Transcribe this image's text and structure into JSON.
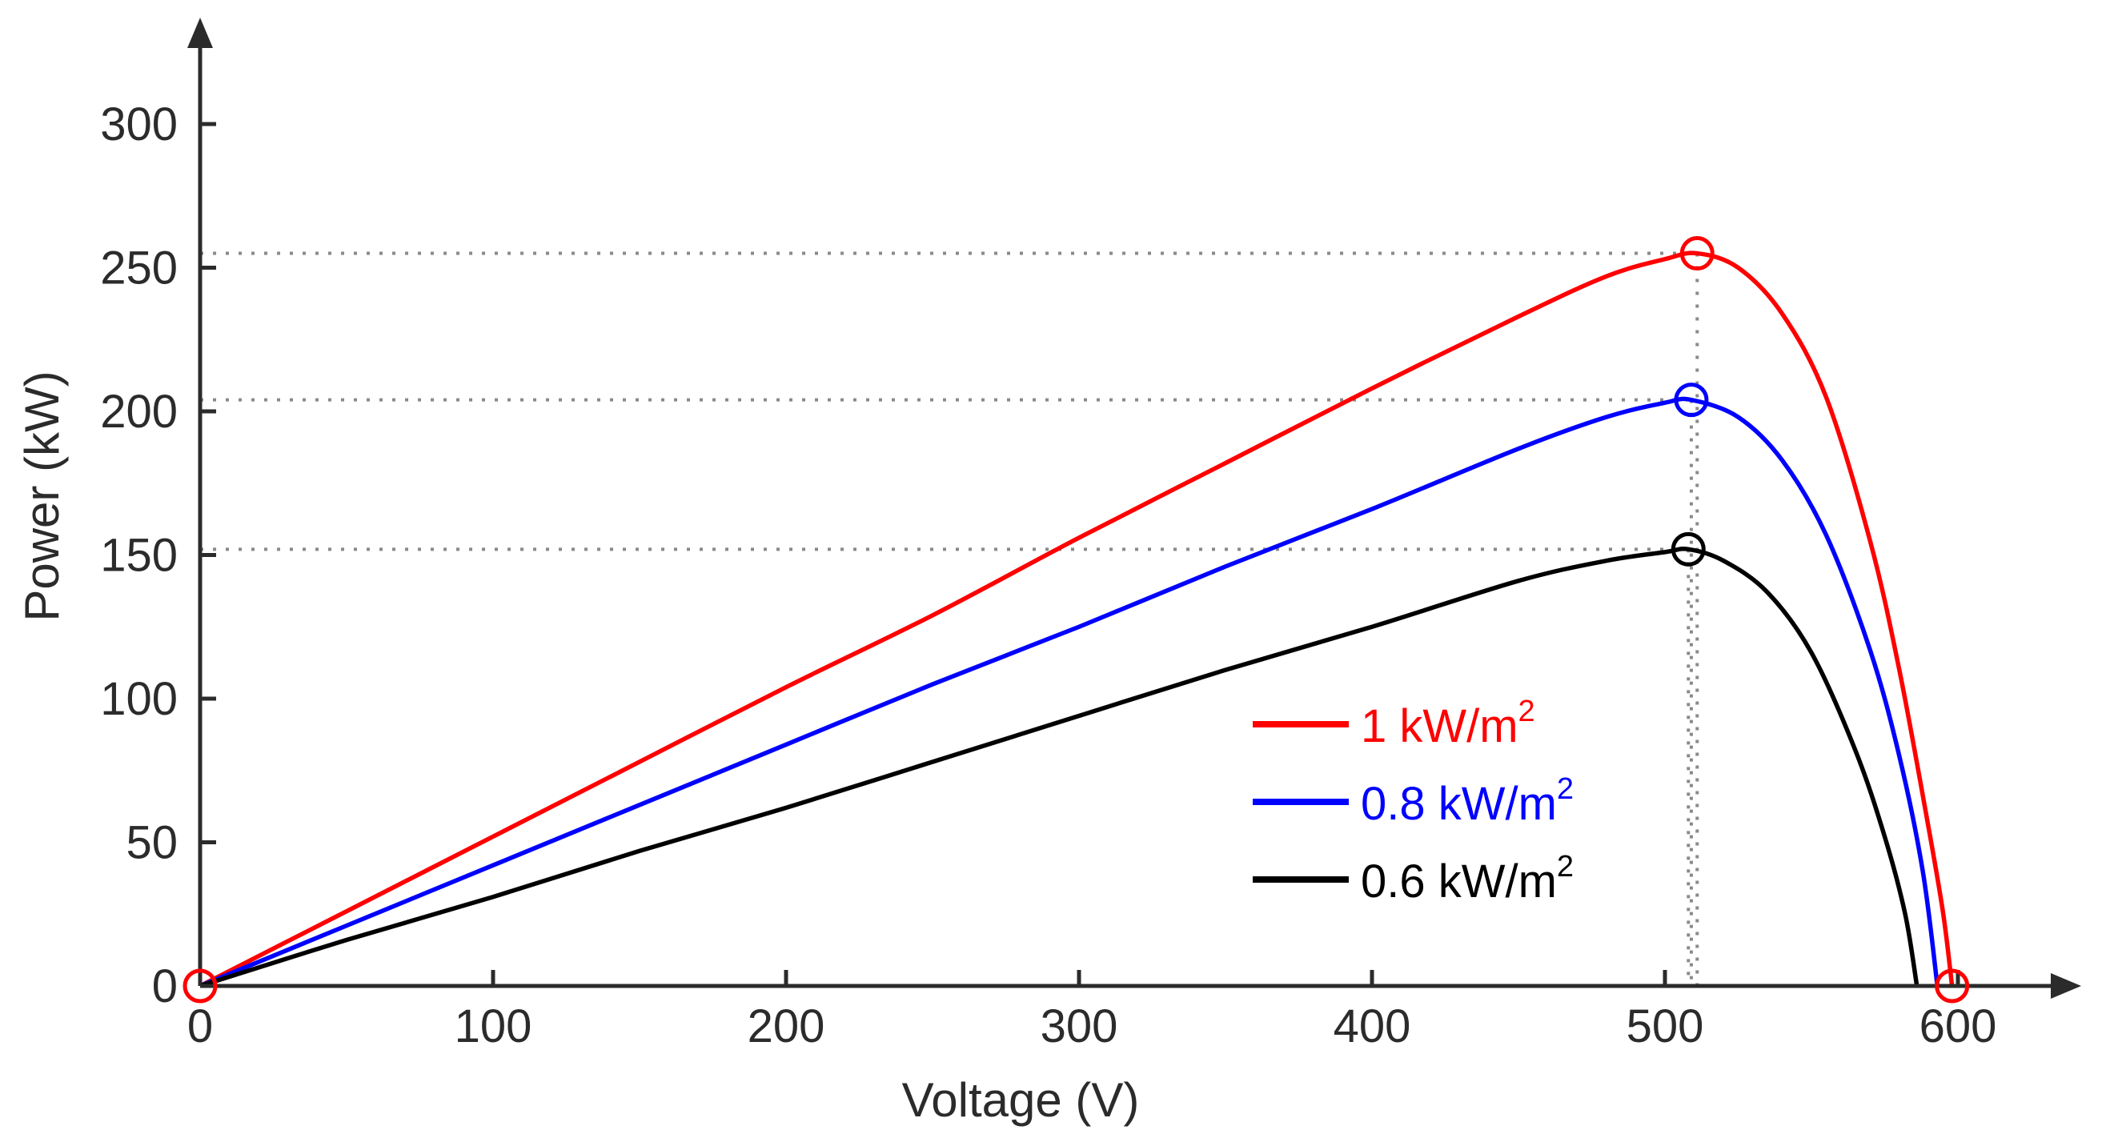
{
  "chart_data": {
    "type": "line",
    "xlabel": "Voltage (V)",
    "ylabel": "Power (kW)",
    "xlim": [
      0,
      640
    ],
    "ylim": [
      0,
      330
    ],
    "xticks": [
      "0",
      "100",
      "200",
      "300",
      "400",
      "500",
      "600"
    ],
    "yticks": [
      "0",
      "50",
      "100",
      "150",
      "200",
      "250",
      "300"
    ],
    "grid": false,
    "legend_position": "center-right",
    "series": [
      {
        "name": "1 kW/m",
        "name_superscript": "2",
        "color": "#ff0000",
        "voc": 598,
        "mpp": {
          "x": 511,
          "y": 255
        },
        "x": [
          0,
          50,
          100,
          150,
          200,
          250,
          300,
          350,
          400,
          450,
          480,
          500,
          511,
          525,
          540,
          555,
          570,
          580,
          590,
          595,
          598
        ],
        "y": [
          0,
          26,
          52,
          78,
          104,
          129,
          156,
          182,
          208,
          233,
          247,
          253,
          255,
          250,
          234,
          205,
          155,
          110,
          55,
          25,
          0
        ]
      },
      {
        "name": "0.8 kW/m",
        "name_superscript": "2",
        "color": "#0000ff",
        "voc": 593,
        "mpp": {
          "x": 509,
          "y": 204
        },
        "x": [
          0,
          50,
          100,
          150,
          200,
          250,
          300,
          350,
          400,
          450,
          480,
          500,
          509,
          525,
          540,
          555,
          570,
          580,
          588,
          593
        ],
        "y": [
          0,
          21,
          42,
          63,
          84,
          105,
          125,
          146,
          166,
          187,
          198,
          203,
          204,
          198,
          183,
          157,
          117,
          80,
          40,
          0
        ]
      },
      {
        "name": "0.6 kW/m",
        "name_superscript": "2",
        "color": "#000000",
        "voc": 586,
        "mpp": {
          "x": 508,
          "y": 152
        },
        "x": [
          0,
          50,
          100,
          150,
          200,
          250,
          300,
          350,
          400,
          450,
          480,
          500,
          508,
          520,
          535,
          550,
          565,
          575,
          582,
          586
        ],
        "y": [
          0,
          16,
          31,
          47,
          62,
          78,
          94,
          110,
          125,
          141,
          148,
          151,
          152,
          148,
          137,
          116,
          82,
          52,
          25,
          0
        ]
      }
    ],
    "annotations": {
      "origin_marker": {
        "x": 0,
        "y": 0,
        "color": "#ff0000"
      },
      "voc_marker": {
        "x": 598,
        "y": 0,
        "color": "#ff0000"
      }
    }
  }
}
